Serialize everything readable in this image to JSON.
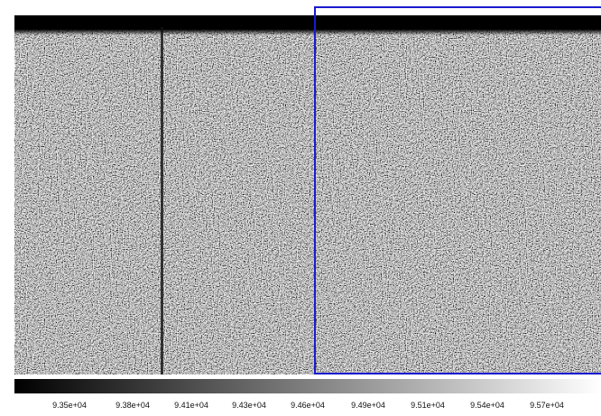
{
  "colorbar": {
    "labels": [
      "9.35e+04",
      "9.38e+04",
      "9.41e+04",
      "9.43e+04",
      "9.46e+04",
      "9.49e+04",
      "9.51e+04",
      "9.54e+04",
      "9.57e+04"
    ]
  }
}
